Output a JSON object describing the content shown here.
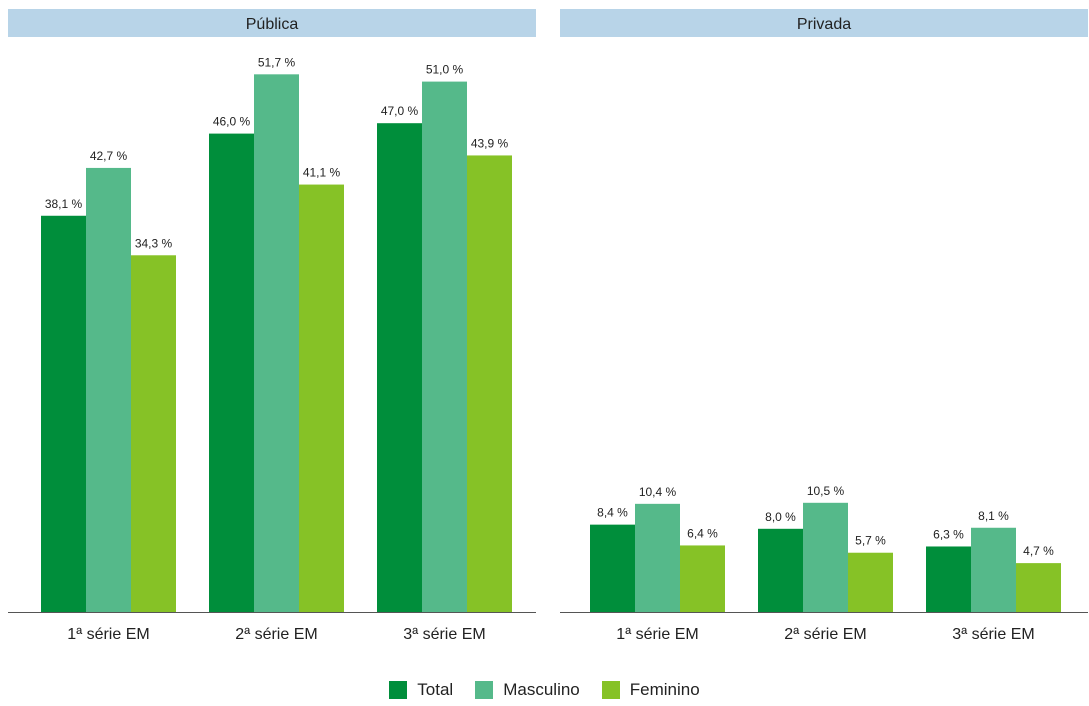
{
  "colors": {
    "panel_header_bg": "#b8d4e8",
    "axis": "#555555",
    "text": "#222222"
  },
  "chart_data": {
    "type": "bar",
    "ylim": [
      0,
      55
    ],
    "grid": false,
    "legend_placement": "bottom-center",
    "panels": [
      {
        "title": "Pública",
        "categories": [
          "1ª série EM",
          "2ª série EM",
          "3ª série EM"
        ],
        "series": [
          {
            "name": "Total",
            "color": "#008e3b",
            "values": [
              38.1,
              46.0,
              47.0
            ],
            "labels": [
              "38,1 %",
              "46,0 %",
              "47,0 %"
            ]
          },
          {
            "name": "Masculino",
            "color": "#55b98a",
            "values": [
              42.7,
              51.7,
              51.0
            ],
            "labels": [
              "42,7 %",
              "51,7 %",
              "51,0 %"
            ]
          },
          {
            "name": "Feminino",
            "color": "#86c226",
            "values": [
              34.3,
              41.1,
              43.9
            ],
            "labels": [
              "34,3 %",
              "41,1 %",
              "43,9 %"
            ]
          }
        ]
      },
      {
        "title": "Privada",
        "categories": [
          "1ª série EM",
          "2ª série EM",
          "3ª série EM"
        ],
        "series": [
          {
            "name": "Total",
            "color": "#008e3b",
            "values": [
              8.4,
              8.0,
              6.3
            ],
            "labels": [
              "8,4 %",
              "8,0 %",
              "6,3 %"
            ]
          },
          {
            "name": "Masculino",
            "color": "#55b98a",
            "values": [
              10.4,
              10.5,
              8.1
            ],
            "labels": [
              "10,4 %",
              "10,5 %",
              "8,1 %"
            ]
          },
          {
            "name": "Feminino",
            "color": "#86c226",
            "values": [
              6.4,
              5.7,
              4.7
            ],
            "labels": [
              "6,4 %",
              "5,7 %",
              "4,7 %"
            ]
          }
        ]
      }
    ],
    "legend": [
      {
        "name": "Total",
        "color": "#008e3b"
      },
      {
        "name": "Masculino",
        "color": "#55b98a"
      },
      {
        "name": "Feminino",
        "color": "#86c226"
      }
    ]
  }
}
